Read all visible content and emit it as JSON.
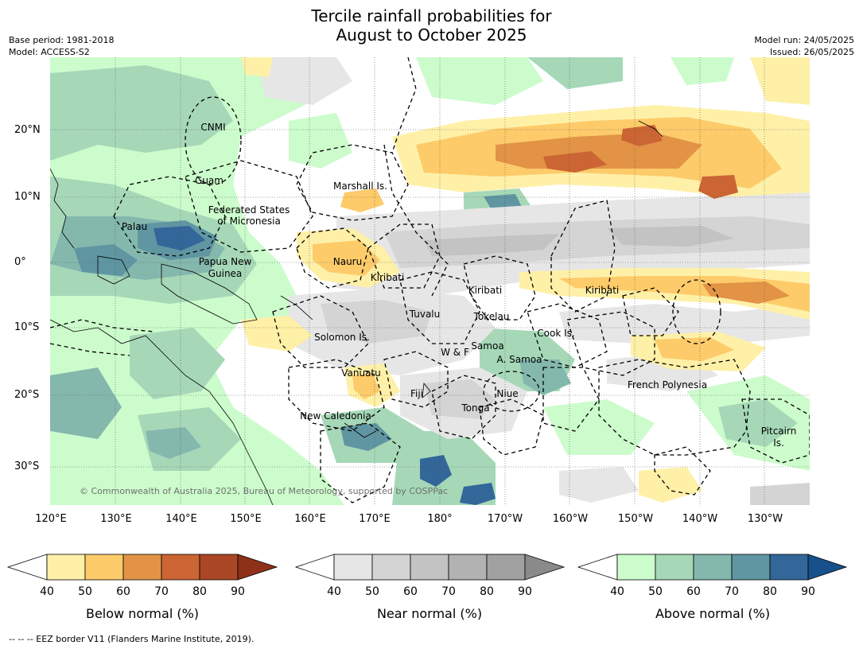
{
  "title_line1": "Tercile rainfall probabilities for",
  "title_line2": "August to October 2025",
  "base_period": "Base period: 1981-2018",
  "model": "Model: ACCESS-S2",
  "model_run": "Model run: 24/05/2025",
  "issued": "Issued: 26/05/2025",
  "lat_labels": [
    "20°N",
    "10°N",
    "0°",
    "10°S",
    "20°S",
    "30°S"
  ],
  "lon_labels": [
    "120°E",
    "130°E",
    "140°E",
    "150°E",
    "160°E",
    "170°E",
    "180°",
    "170°W",
    "160°W",
    "150°W",
    "140°W",
    "130°W"
  ],
  "places": {
    "cnmi": "CNMI",
    "guam": "Guam",
    "marshall": "Marshall Is.",
    "fsm1": "Federated States",
    "fsm2": "of Micronesia",
    "palau": "Palau",
    "png1": "Papua New",
    "png2": "Guinea",
    "nauru": "Nauru",
    "kiribati_w": "Kiribati",
    "kiribati_c": "Kiribati",
    "kiribati_e": "Kiribati",
    "tuvalu": "Tuvalu",
    "tokelau": "Tokelau",
    "cook": "Cook Is.",
    "solomon": "Solomon Is.",
    "wf": "W & F",
    "samoa": "Samoa",
    "asamoa": "A. Samoa",
    "vanuatu": "Vanuatu",
    "fiji": "Fiji",
    "niue": "Niue",
    "tonga": "Tonga",
    "frenchpoly": "French Polynesia",
    "newcal": "New Caledonia",
    "pitcairn1": "Pitcairn",
    "pitcairn2": "Is."
  },
  "credit": "© Commonwealth of Australia 2025, Bureau of Meteorology, supported by COSPPac",
  "colorbars": [
    {
      "title": "Below normal (%)",
      "ticks": [
        "40",
        "50",
        "60",
        "70",
        "80",
        "90"
      ],
      "colors": [
        "#fff0a8",
        "#fdcb6a",
        "#e29346",
        "#cb6533",
        "#ab4626"
      ],
      "over": "#8d3119"
    },
    {
      "title": "Near normal (%)",
      "ticks": [
        "40",
        "50",
        "60",
        "70",
        "80",
        "90"
      ],
      "colors": [
        "#e6e6e6",
        "#d4d4d4",
        "#c3c3c3",
        "#b2b2b2",
        "#a1a1a1"
      ],
      "over": "#8a8a8a"
    },
    {
      "title": "Above normal (%)",
      "ticks": [
        "40",
        "50",
        "60",
        "70",
        "80",
        "90"
      ],
      "colors": [
        "#ccfccc",
        "#a6d8b8",
        "#84b8ad",
        "#5f96a2",
        "#336699"
      ],
      "over": "#17508b"
    }
  ],
  "footnote": "--  --  -- EEZ border V11 (Flanders Marine Institute, 2019)."
}
